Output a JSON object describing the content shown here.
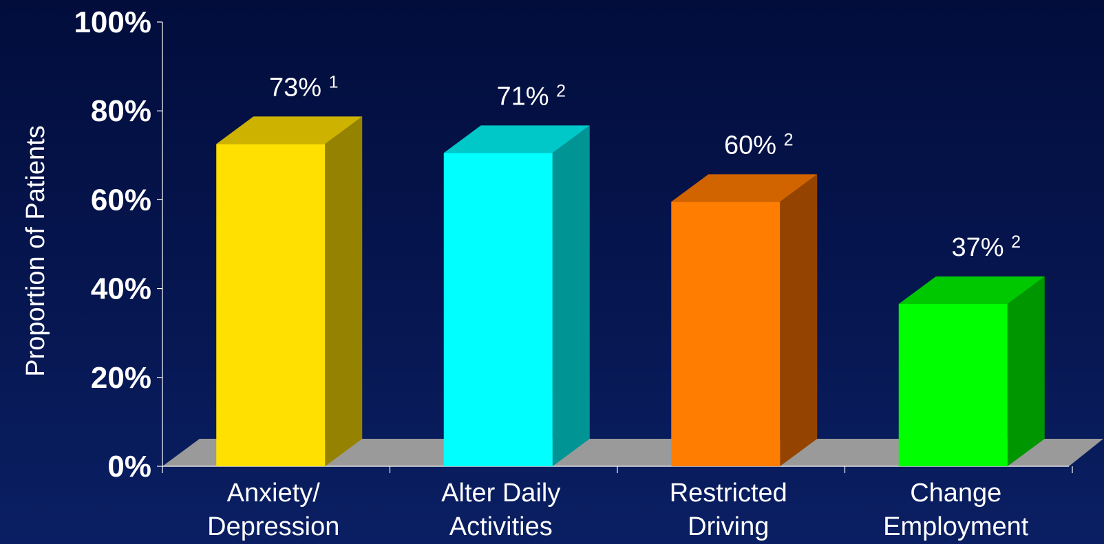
{
  "chart_data": {
    "type": "bar",
    "title": "",
    "xlabel": "",
    "ylabel": "Proportion of Patients",
    "ylim": [
      0,
      100
    ],
    "y_ticks": [
      "0%",
      "20%",
      "40%",
      "60%",
      "80%",
      "100%"
    ],
    "y_tick_values": [
      0,
      20,
      40,
      60,
      80,
      100
    ],
    "grid": false,
    "style": "3d-bar",
    "floor_color": "#9a9a9a",
    "categories": [
      {
        "lines": [
          "Anxiety/",
          "Depression"
        ],
        "value": 73,
        "label": "73%",
        "footnote": "1",
        "front": "#ffe000",
        "side": "#958200",
        "top": "#cdb300"
      },
      {
        "lines": [
          "Alter Daily",
          "Activities"
        ],
        "value": 71,
        "label": "71%",
        "footnote": "2",
        "front": "#00ffff",
        "side": "#009494",
        "top": "#00c8c8"
      },
      {
        "lines": [
          "Restricted",
          "Driving"
        ],
        "value": 60,
        "label": "60%",
        "footnote": "2",
        "front": "#ff7d00",
        "side": "#944400",
        "top": "#d26400"
      },
      {
        "lines": [
          "Change",
          "Employment"
        ],
        "value": 37,
        "label": "37%",
        "footnote": "2",
        "front": "#00ff00",
        "side": "#009600",
        "top": "#00c800"
      }
    ]
  }
}
